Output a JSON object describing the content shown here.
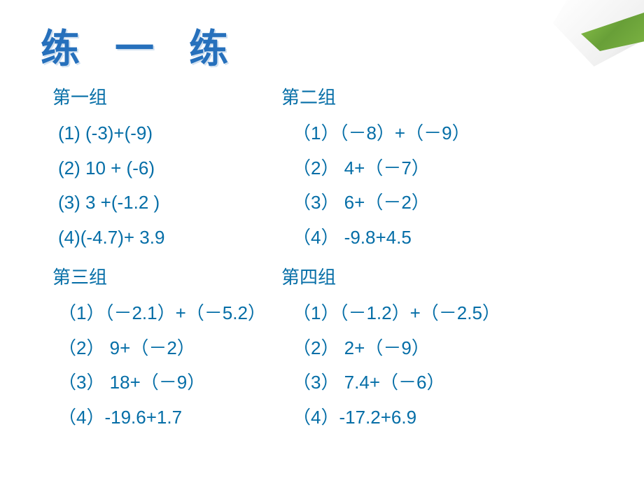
{
  "title": "练 一 练",
  "groups": {
    "g1": {
      "title": "第一组",
      "items": [
        "(1) (-3)+(-9)",
        "(2) 10 + (-6)",
        "(3) 3  +(-1.2  )",
        "(4)(-4.7)+ 3.9"
      ]
    },
    "g2": {
      "title": "第二组",
      "items": [
        "（1）（－8）+（－9）",
        "（2） 4+（－7）",
        "（3） 6+（－2）",
        "（4） -9.8+4.5"
      ]
    },
    "g3": {
      "title": "第三组",
      "items": [
        "（1）（－2.1）+（－5.2）",
        "（2） 9+（－2）",
        "（3） 18+（－9）",
        "（4）-19.6+1.7"
      ]
    },
    "g4": {
      "title": "第四组",
      "items": [
        "（1）（－1.2）+（－2.5）",
        "（2） 2+（－9）",
        "（3） 7.4+（－6）",
        "（4）-17.2+6.9"
      ]
    }
  },
  "colors": {
    "text": "#056ea7",
    "title": "#2670bc",
    "background": "#ffffff",
    "curl_green": "#7cb342"
  },
  "typography": {
    "title_fontsize": 56,
    "body_fontsize": 26
  }
}
